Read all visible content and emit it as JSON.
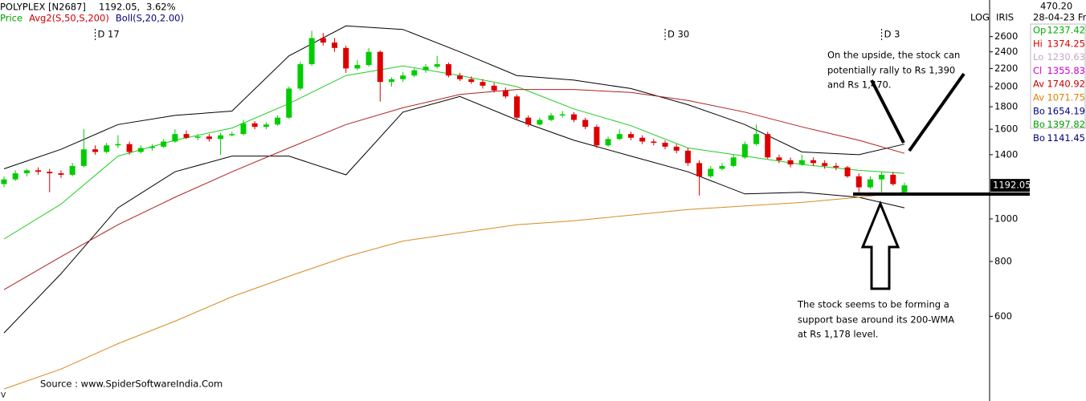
{
  "chart_data": {
    "type": "candlestick",
    "symbol": "POLYPLEX [N2687]",
    "price_text": "1192.05,",
    "change": "3.62%",
    "legend": [
      {
        "name": "Price",
        "color": "#00a000"
      },
      {
        "name": "Avg2(S,50,S,200)",
        "color": "#cc0000"
      },
      {
        "name": "Boll(S,20,2.00)",
        "color": "#000080"
      }
    ],
    "scale_label": "LOG",
    "tool_label": "IRIS",
    "date_markers": [
      {
        "label": "D 17",
        "index": 8
      },
      {
        "label": "D 30",
        "index": 58
      },
      {
        "label": "D 3",
        "index": 77
      }
    ],
    "log_scale": true,
    "ylim": [
      410,
      3150
    ],
    "yticks": [
      600,
      800,
      1000,
      1400,
      1600,
      1800,
      2000,
      2200,
      2400,
      2600
    ],
    "up_color": "#00cc00",
    "down_color": "#dd0000",
    "ohlc": [
      [
        1200,
        1250,
        1180,
        1230
      ],
      [
        1230,
        1290,
        1220,
        1270
      ],
      [
        1270,
        1300,
        1250,
        1290
      ],
      [
        1290,
        1310,
        1260,
        1280
      ],
      [
        1280,
        1300,
        1150,
        1270
      ],
      [
        1270,
        1290,
        1240,
        1260
      ],
      [
        1260,
        1340,
        1250,
        1320
      ],
      [
        1320,
        1600,
        1310,
        1440
      ],
      [
        1440,
        1470,
        1400,
        1420
      ],
      [
        1420,
        1490,
        1410,
        1470
      ],
      [
        1470,
        1550,
        1450,
        1480
      ],
      [
        1480,
        1500,
        1400,
        1420
      ],
      [
        1420,
        1470,
        1410,
        1450
      ],
      [
        1450,
        1480,
        1430,
        1460
      ],
      [
        1460,
        1520,
        1450,
        1500
      ],
      [
        1500,
        1600,
        1490,
        1560
      ],
      [
        1560,
        1590,
        1520,
        1530
      ],
      [
        1530,
        1560,
        1510,
        1540
      ],
      [
        1540,
        1560,
        1500,
        1520
      ],
      [
        1520,
        1570,
        1400,
        1550
      ],
      [
        1550,
        1580,
        1540,
        1560
      ],
      [
        1560,
        1680,
        1550,
        1650
      ],
      [
        1650,
        1670,
        1600,
        1620
      ],
      [
        1620,
        1660,
        1600,
        1640
      ],
      [
        1640,
        1720,
        1630,
        1700
      ],
      [
        1700,
        2000,
        1690,
        1980
      ],
      [
        1980,
        2280,
        1960,
        2250
      ],
      [
        2250,
        2680,
        2230,
        2580
      ],
      [
        2580,
        2650,
        2480,
        2520
      ],
      [
        2520,
        2580,
        2400,
        2450
      ],
      [
        2450,
        2480,
        2150,
        2200
      ],
      [
        2200,
        2300,
        2180,
        2240
      ],
      [
        2240,
        2450,
        2220,
        2400
      ],
      [
        2400,
        2420,
        1850,
        2050
      ],
      [
        2050,
        2100,
        2000,
        2080
      ],
      [
        2080,
        2160,
        2050,
        2120
      ],
      [
        2120,
        2200,
        2100,
        2180
      ],
      [
        2180,
        2250,
        2150,
        2220
      ],
      [
        2220,
        2350,
        2200,
        2250
      ],
      [
        2250,
        2270,
        2100,
        2120
      ],
      [
        2120,
        2150,
        2060,
        2080
      ],
      [
        2080,
        2110,
        2030,
        2050
      ],
      [
        2050,
        2080,
        1980,
        2010
      ],
      [
        2010,
        2040,
        1940,
        1960
      ],
      [
        1960,
        1990,
        1880,
        1900
      ],
      [
        1900,
        1920,
        1680,
        1700
      ],
      [
        1700,
        1720,
        1620,
        1640
      ],
      [
        1640,
        1700,
        1630,
        1680
      ],
      [
        1680,
        1740,
        1670,
        1720
      ],
      [
        1720,
        1760,
        1700,
        1730
      ],
      [
        1730,
        1750,
        1660,
        1680
      ],
      [
        1680,
        1700,
        1600,
        1620
      ],
      [
        1620,
        1640,
        1450,
        1470
      ],
      [
        1470,
        1540,
        1460,
        1520
      ],
      [
        1520,
        1600,
        1510,
        1560
      ],
      [
        1560,
        1580,
        1510,
        1530
      ],
      [
        1530,
        1550,
        1480,
        1500
      ],
      [
        1500,
        1520,
        1470,
        1490
      ],
      [
        1490,
        1510,
        1440,
        1460
      ],
      [
        1460,
        1480,
        1410,
        1430
      ],
      [
        1430,
        1450,
        1320,
        1340
      ],
      [
        1340,
        1360,
        1130,
        1250
      ],
      [
        1250,
        1320,
        1240,
        1300
      ],
      [
        1300,
        1340,
        1290,
        1320
      ],
      [
        1320,
        1400,
        1310,
        1380
      ],
      [
        1380,
        1500,
        1370,
        1480
      ],
      [
        1480,
        1640,
        1470,
        1560
      ],
      [
        1560,
        1580,
        1370,
        1380
      ],
      [
        1380,
        1400,
        1340,
        1360
      ],
      [
        1360,
        1380,
        1310,
        1330
      ],
      [
        1330,
        1400,
        1320,
        1360
      ],
      [
        1360,
        1380,
        1320,
        1340
      ],
      [
        1340,
        1360,
        1300,
        1320
      ],
      [
        1320,
        1340,
        1290,
        1310
      ],
      [
        1310,
        1320,
        1240,
        1250
      ],
      [
        1250,
        1270,
        1150,
        1180
      ],
      [
        1180,
        1250,
        1170,
        1230
      ],
      [
        1230,
        1280,
        1150,
        1260
      ],
      [
        1260,
        1280,
        1190,
        1200
      ],
      [
        1150,
        1210,
        1140,
        1192.05
      ]
    ],
    "line_x": [
      0,
      5,
      10,
      15,
      20,
      25,
      30,
      35,
      40,
      45,
      50,
      55,
      60,
      65,
      70,
      75,
      79
    ],
    "lines": [
      {
        "color": "#000000",
        "values": [
          1300,
          1440,
          1640,
          1720,
          1760,
          2350,
          2750,
          2700,
          2400,
          2120,
          2070,
          1980,
          1820,
          1640,
          1420,
          1400,
          1480
        ]
      },
      {
        "color": "#000000",
        "values": [
          550,
          750,
          1060,
          1280,
          1390,
          1390,
          1260,
          1750,
          1900,
          1680,
          1510,
          1390,
          1280,
          1140,
          1150,
          1120,
          1060
        ]
      },
      {
        "color": "#22cc22",
        "values": [
          900,
          1080,
          1390,
          1510,
          1610,
          1830,
          2120,
          2230,
          2120,
          2000,
          1780,
          1630,
          1450,
          1390,
          1330,
          1290,
          1270
        ]
      },
      {
        "color": "#b02020",
        "values": [
          690,
          820,
          970,
          1120,
          1280,
          1450,
          1640,
          1790,
          1920,
          1970,
          1970,
          1940,
          1860,
          1750,
          1620,
          1510,
          1410
        ]
      },
      {
        "color": "#d98a20",
        "values": [
          410,
          455,
          520,
          585,
          665,
          740,
          820,
          890,
          930,
          970,
          990,
          1020,
          1050,
          1070,
          1090,
          1120,
          1150
        ]
      }
    ],
    "info_top": [
      "470.20",
      "28-04-23 Fri"
    ],
    "info": [
      {
        "label": "Op",
        "value": 1237.42,
        "color": "#00b000"
      },
      {
        "label": "Hi",
        "value": 1374.25,
        "color": "#dd0000"
      },
      {
        "label": "Lo",
        "value": 1230.63,
        "color": "#c8a8c8"
      },
      {
        "label": "Cl",
        "value": 1355.83,
        "color": "#cc00cc"
      },
      {
        "label": "Av",
        "value": 1740.92,
        "color": "#cc0000"
      },
      {
        "label": "Av",
        "value": 1071.75,
        "color": "#e08000"
      },
      {
        "label": "Bo",
        "value": 1654.19,
        "color": "#000080"
      },
      {
        "label": "Bo",
        "value": 1397.82,
        "color": "#00a000"
      },
      {
        "label": "Bo",
        "value": 1141.45,
        "color": "#000080"
      }
    ],
    "annotation_upside": [
      "On the upside, the stock can",
      "potentially rally to Rs 1,390",
      "and Rs 1,470."
    ],
    "annotation_support": [
      "The stock seems to be forming a",
      "support base around its 200-WMA",
      "at Rs 1,178 level."
    ],
    "source": "Source : www.SpiderSoftwareIndia.Com",
    "corner_mark": "V"
  }
}
